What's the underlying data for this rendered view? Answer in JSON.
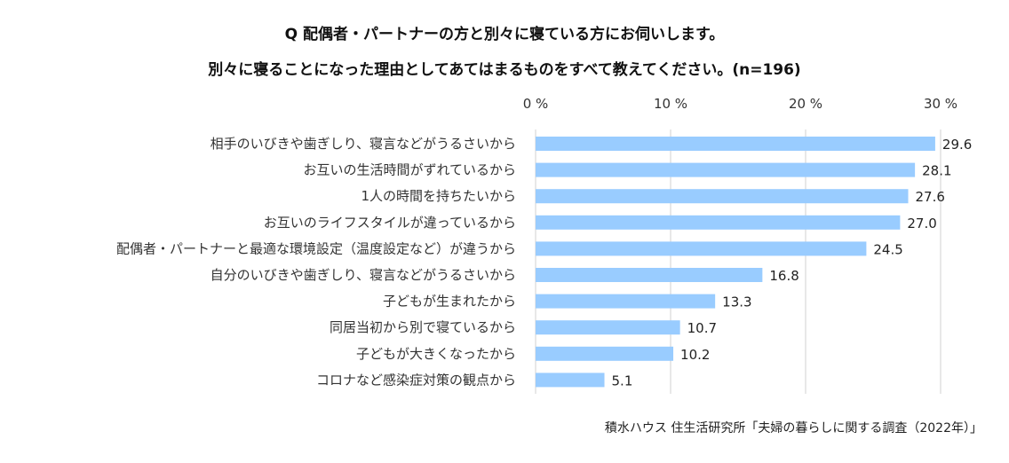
{
  "title_line1": "Q 配偶者・パートナーの方と別々に寝ている方にお伺いします。",
  "title_line2": "別々に寝ることになった理由としてあてはまるものをすべて教えてください。(n=196)",
  "source": "積水ハウス 住生活研究所「夫婦の暮らしに関する調査（2022年）」",
  "chart_data": {
    "type": "bar",
    "orientation": "horizontal",
    "categories": [
      "相手のいびきや歯ぎしり、寝言などがうるさいから",
      "お互いの生活時間がずれているから",
      "1人の時間を持ちたいから",
      "お互いのライフスタイルが違っているから",
      "配偶者・パートナーと最適な環境設定（温度設定など）が違うから",
      "自分のいびきや歯ぎしり、寝言などがうるさいから",
      "子どもが生まれたから",
      "同居当初から別で寝ているから",
      "子どもが大きくなったから",
      "コロナなど感染症対策の観点から"
    ],
    "values": [
      29.6,
      28.1,
      27.6,
      27.0,
      24.5,
      16.8,
      13.3,
      10.7,
      10.2,
      5.1
    ],
    "value_labels": [
      "29.6",
      "28.1",
      "27.6",
      "27.0",
      "24.5",
      "16.8",
      "13.3",
      "10.7",
      "10.2",
      "5.1"
    ],
    "xlim": [
      0,
      30
    ],
    "xticks": [
      0,
      10,
      20,
      30
    ],
    "xtick_labels": [
      "0 %",
      "10 %",
      "20 %",
      "30 %"
    ],
    "axis_position": "top",
    "grid": true,
    "bar_color": "#99ccff",
    "grid_color": "#d0d0d0"
  }
}
